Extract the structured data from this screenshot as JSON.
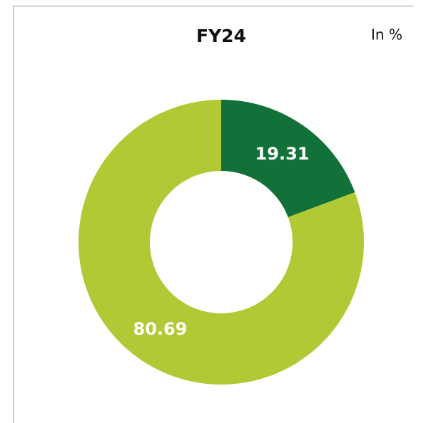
{
  "chart_data": {
    "type": "donut",
    "title": "FY24",
    "annotation": "In %",
    "values": [
      19.31,
      80.69
    ],
    "colors": [
      "#127139",
      "#b1c935"
    ]
  }
}
